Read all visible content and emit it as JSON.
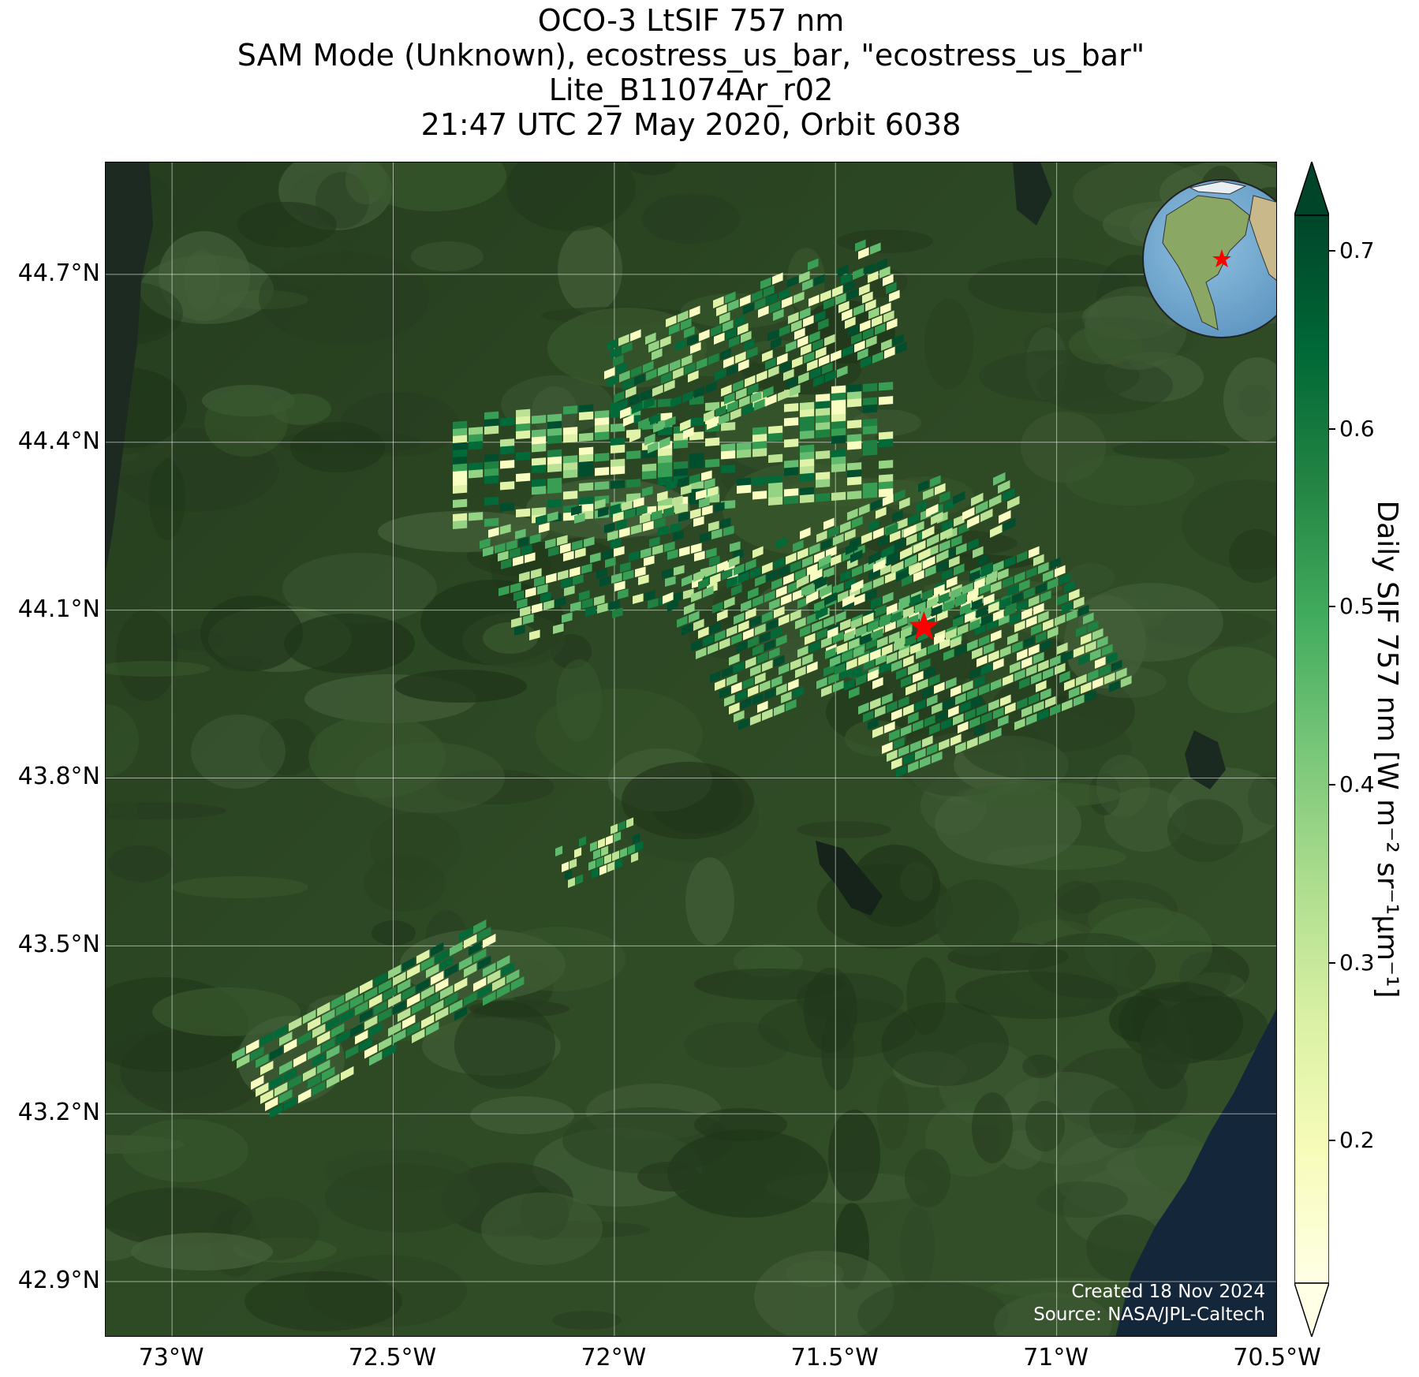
{
  "title": {
    "line1": "OCO-3 LtSIF 757 nm",
    "line2": "SAM Mode (Unknown), ecostress_us_bar, \"ecostress_us_bar\"",
    "line3": "Lite_B11074Ar_r02",
    "line4": "21:47 UTC 27 May 2020, Orbit 6038"
  },
  "map": {
    "lat_labels": [
      "44.7°N",
      "44.4°N",
      "44.1°N",
      "43.8°N",
      "43.5°N",
      "43.2°N",
      "42.9°N"
    ],
    "lat_values": [
      44.7,
      44.4,
      44.1,
      43.8,
      43.5,
      43.2,
      42.9
    ],
    "lon_labels": [
      "73°W",
      "72.5°W",
      "72°W",
      "71.5°W",
      "71°W",
      "70.5°W"
    ],
    "lon_values": [
      -73.0,
      -72.5,
      -72.0,
      -71.5,
      -71.0,
      -70.5
    ],
    "extent": {
      "lon_min": -73.15,
      "lon_max": -70.5,
      "lat_min": 42.8,
      "lat_max": 44.9
    },
    "target_marker": {
      "lon": -71.3,
      "lat": 44.07,
      "symbol": "red-star"
    },
    "inset_globe": "globe-icon",
    "credit_line1": "Created 18 Nov 2024",
    "credit_line2": "Source: NASA/JPL-Caltech"
  },
  "colorbar": {
    "label": "Daily SIF 757 nm [W m⁻² sr⁻¹μm⁻¹]",
    "ticks": [
      "0.7",
      "0.6",
      "0.5",
      "0.4",
      "0.3",
      "0.2"
    ],
    "tick_values": [
      0.7,
      0.6,
      0.5,
      0.4,
      0.3,
      0.2
    ],
    "vmin": 0.12,
    "vmax": 0.72,
    "colormap": "YlGn",
    "extend": "both"
  },
  "colors": {
    "background_land": "#2d4a24",
    "grid": "#ffffff",
    "marker": "#ff0000"
  }
}
